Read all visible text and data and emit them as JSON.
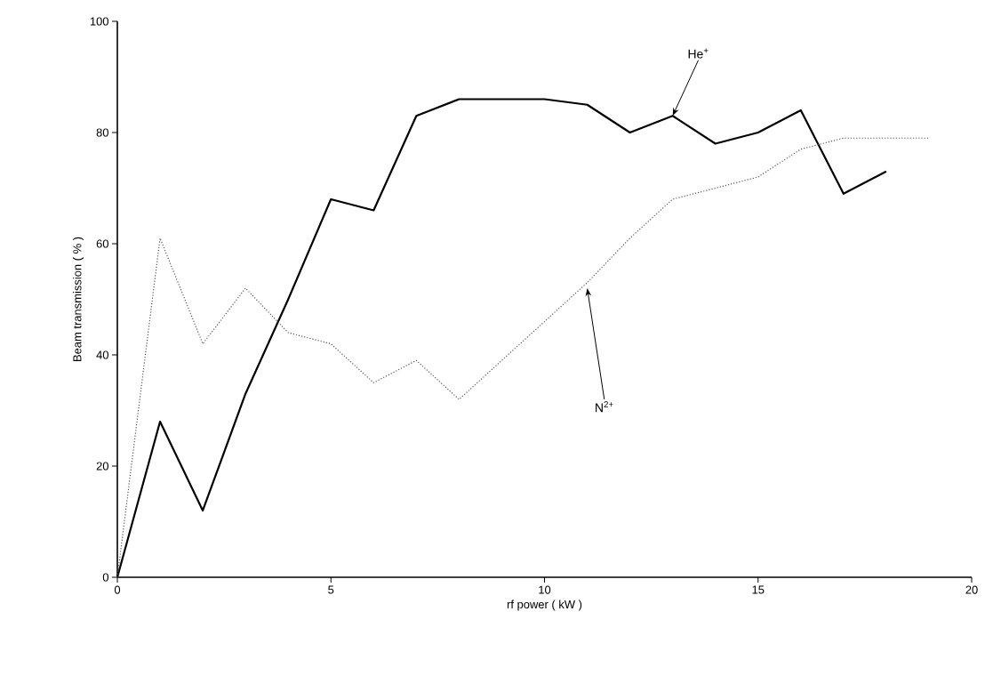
{
  "chart_data": {
    "type": "line",
    "xlabel": "rf power ( kW )",
    "ylabel": "Beam transmission ( % )",
    "xlim": [
      0,
      20
    ],
    "ylim": [
      0,
      100
    ],
    "xticks": [
      0,
      5,
      10,
      15,
      20
    ],
    "yticks": [
      0,
      20,
      40,
      60,
      80,
      100
    ],
    "grid": false,
    "marker": "none",
    "series": [
      {
        "color": "#000000",
        "line_style": "solid",
        "x": [
          0,
          1,
          2,
          3,
          4,
          5,
          6,
          7,
          8,
          9,
          10,
          11,
          12,
          13,
          14,
          15,
          16,
          17,
          18
        ],
        "values": [
          0,
          28,
          12,
          33,
          50,
          68,
          66,
          83,
          86,
          86,
          86,
          85,
          80,
          83,
          78,
          80,
          84,
          69,
          73
        ]
      },
      {
        "color": "#555555",
        "line_style": "dotted",
        "x": [
          0,
          1,
          2,
          3,
          4,
          5,
          6,
          7,
          8,
          9,
          10,
          11,
          12,
          13,
          14,
          15,
          16,
          17,
          18,
          19
        ],
        "values": [
          0,
          61,
          42,
          52,
          44,
          42,
          35,
          39,
          32,
          39,
          46,
          53,
          61,
          68,
          70,
          72,
          77,
          79,
          79,
          79
        ]
      }
    ],
    "annotations": [
      {
        "text": "He$^{+}$",
        "x": 13,
        "y": 83
      },
      {
        "text": "N$^{2+}$",
        "x": 11,
        "y": 52
      }
    ]
  }
}
